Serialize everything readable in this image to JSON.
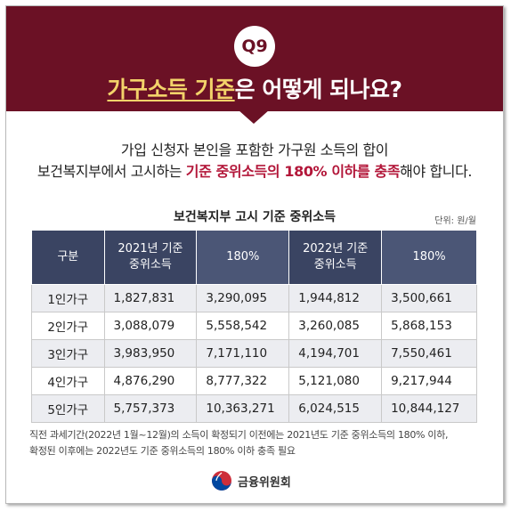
{
  "header": {
    "badge": "Q9",
    "title_highlight": "가구소득 기준",
    "title_rest": "은 어떻게 되나요?"
  },
  "intro": {
    "line1": "가입 신청자 본인을 포함한 가구원 소득의 합이",
    "line2_prefix": "보건복지부에서 고시하는 ",
    "line2_emphasis": "기준 중위소득의 180% 이하를 충족",
    "line2_suffix": "해야 합니다."
  },
  "table": {
    "title": "보건복지부 고시 기준 중위소득",
    "unit": "단위: 원/월",
    "header": {
      "category": "구분",
      "y2021_line1": "2021년 기준",
      "y2021_line2": "중위소득",
      "y2021_pct": "180%",
      "y2022_line1": "2022년 기준",
      "y2022_line2": "중위소득",
      "y2022_pct": "180%"
    },
    "rows": [
      {
        "label": "1인가구",
        "m2021": "1,827,831",
        "p2021": "3,290,095",
        "m2022": "1,944,812",
        "p2022": "3,500,661"
      },
      {
        "label": "2인가구",
        "m2021": "3,088,079",
        "p2021": "5,558,542",
        "m2022": "3,260,085",
        "p2022": "5,868,153"
      },
      {
        "label": "3인가구",
        "m2021": "3,983,950",
        "p2021": "7,171,110",
        "m2022": "4,194,701",
        "p2022": "7,550,461"
      },
      {
        "label": "4인가구",
        "m2021": "4,876,290",
        "p2021": "8,777,322",
        "m2022": "5,121,080",
        "p2022": "9,217,944"
      },
      {
        "label": "5인가구",
        "m2021": "5,757,373",
        "p2021": "10,363,271",
        "m2022": "6,024,515",
        "p2022": "10,844,127"
      }
    ]
  },
  "note": {
    "line1": "직전 과세기간(2022년 1월~12월)의 소득이 확정되기 이전에는 2021년도 기준 중위소득의 180% 이하,",
    "line2": "확정된 이후에는 2022년도 기준 중위소득의 180% 이하 충족 필요"
  },
  "footer": {
    "org_name": "금융위원회",
    "logo_icon": "taegeuk-emblem-icon"
  },
  "colors": {
    "header_bg": "#6b1125",
    "title_highlight": "#f3d36a",
    "emphasis_text": "#b3173a",
    "table_header_dark": "#3a4462",
    "table_header_light": "#4b5676",
    "row_alt_bg": "#ecedf1"
  }
}
